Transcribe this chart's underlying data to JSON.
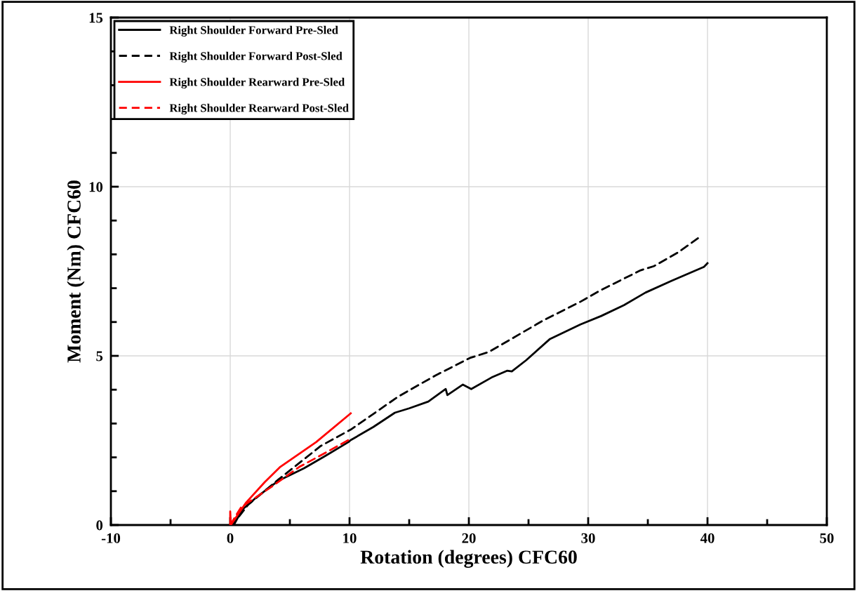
{
  "chart_data": {
    "type": "line",
    "xlabel": "Rotation (degrees) CFC60",
    "ylabel": "Moment (Nm) CFC60",
    "xlim": [
      -10,
      50
    ],
    "xticks": [
      -10,
      0,
      10,
      20,
      30,
      40,
      50
    ],
    "ylim": [
      0,
      15
    ],
    "yticks": [
      0,
      5,
      10,
      15
    ],
    "grid": true,
    "legend": "top left",
    "series": [
      {
        "name": "Right Shoulder Forward Pre-Sled",
        "color": "#000000",
        "line_style": "solid",
        "x": [
          0,
          0.3,
          1.0,
          2.3,
          4.0,
          6.2,
          8.0,
          9.9,
          10.1,
          12.0,
          13.8,
          15.0,
          16.6,
          18.06,
          18.2,
          19.5,
          20.2,
          21.9,
          23.2,
          23.6,
          24.8,
          26.8,
          29.35,
          31.1,
          33.0,
          34.8,
          37.0,
          39.7,
          40.0
        ],
        "values": [
          0,
          0,
          0.45,
          0.85,
          1.3,
          1.68,
          2.05,
          2.45,
          2.51,
          2.9,
          3.32,
          3.45,
          3.65,
          4.02,
          3.84,
          4.15,
          4.02,
          4.36,
          4.56,
          4.54,
          4.87,
          5.5,
          5.93,
          6.18,
          6.5,
          6.87,
          7.22,
          7.63,
          7.74
        ]
      },
      {
        "name": "Right Shoulder Forward Post-Sled",
        "color": "#000000",
        "line_style": "dashed",
        "x": [
          0,
          0.3,
          1.5,
          4.06,
          7.6,
          10.1,
          14.1,
          17.2,
          20.1,
          21.7,
          26.2,
          29.35,
          31.1,
          34.4,
          35.5,
          37.5,
          39.5
        ],
        "values": [
          0,
          0.05,
          0.6,
          1.35,
          2.34,
          2.82,
          3.8,
          4.42,
          4.94,
          5.12,
          6.04,
          6.6,
          6.95,
          7.53,
          7.65,
          8.05,
          8.55
        ]
      },
      {
        "name": "Right Shoulder Rearward Pre-Sled",
        "color": "#ff0000",
        "line_style": "solid",
        "x": [
          0,
          0,
          0.05,
          1.3,
          2.9,
          4.2,
          7.2,
          10.1
        ],
        "values": [
          0,
          0.4,
          0,
          0.65,
          1.27,
          1.72,
          2.45,
          3.3
        ]
      },
      {
        "name": "Right Shoulder Rearward Post-Sled",
        "color": "#ff0000",
        "line_style": "dashed",
        "x": [
          0,
          0.9,
          3.5,
          5.8,
          7.8,
          9.9,
          10.1
        ],
        "values": [
          0,
          0.52,
          1.14,
          1.72,
          2.1,
          2.51,
          2.55
        ]
      }
    ]
  }
}
